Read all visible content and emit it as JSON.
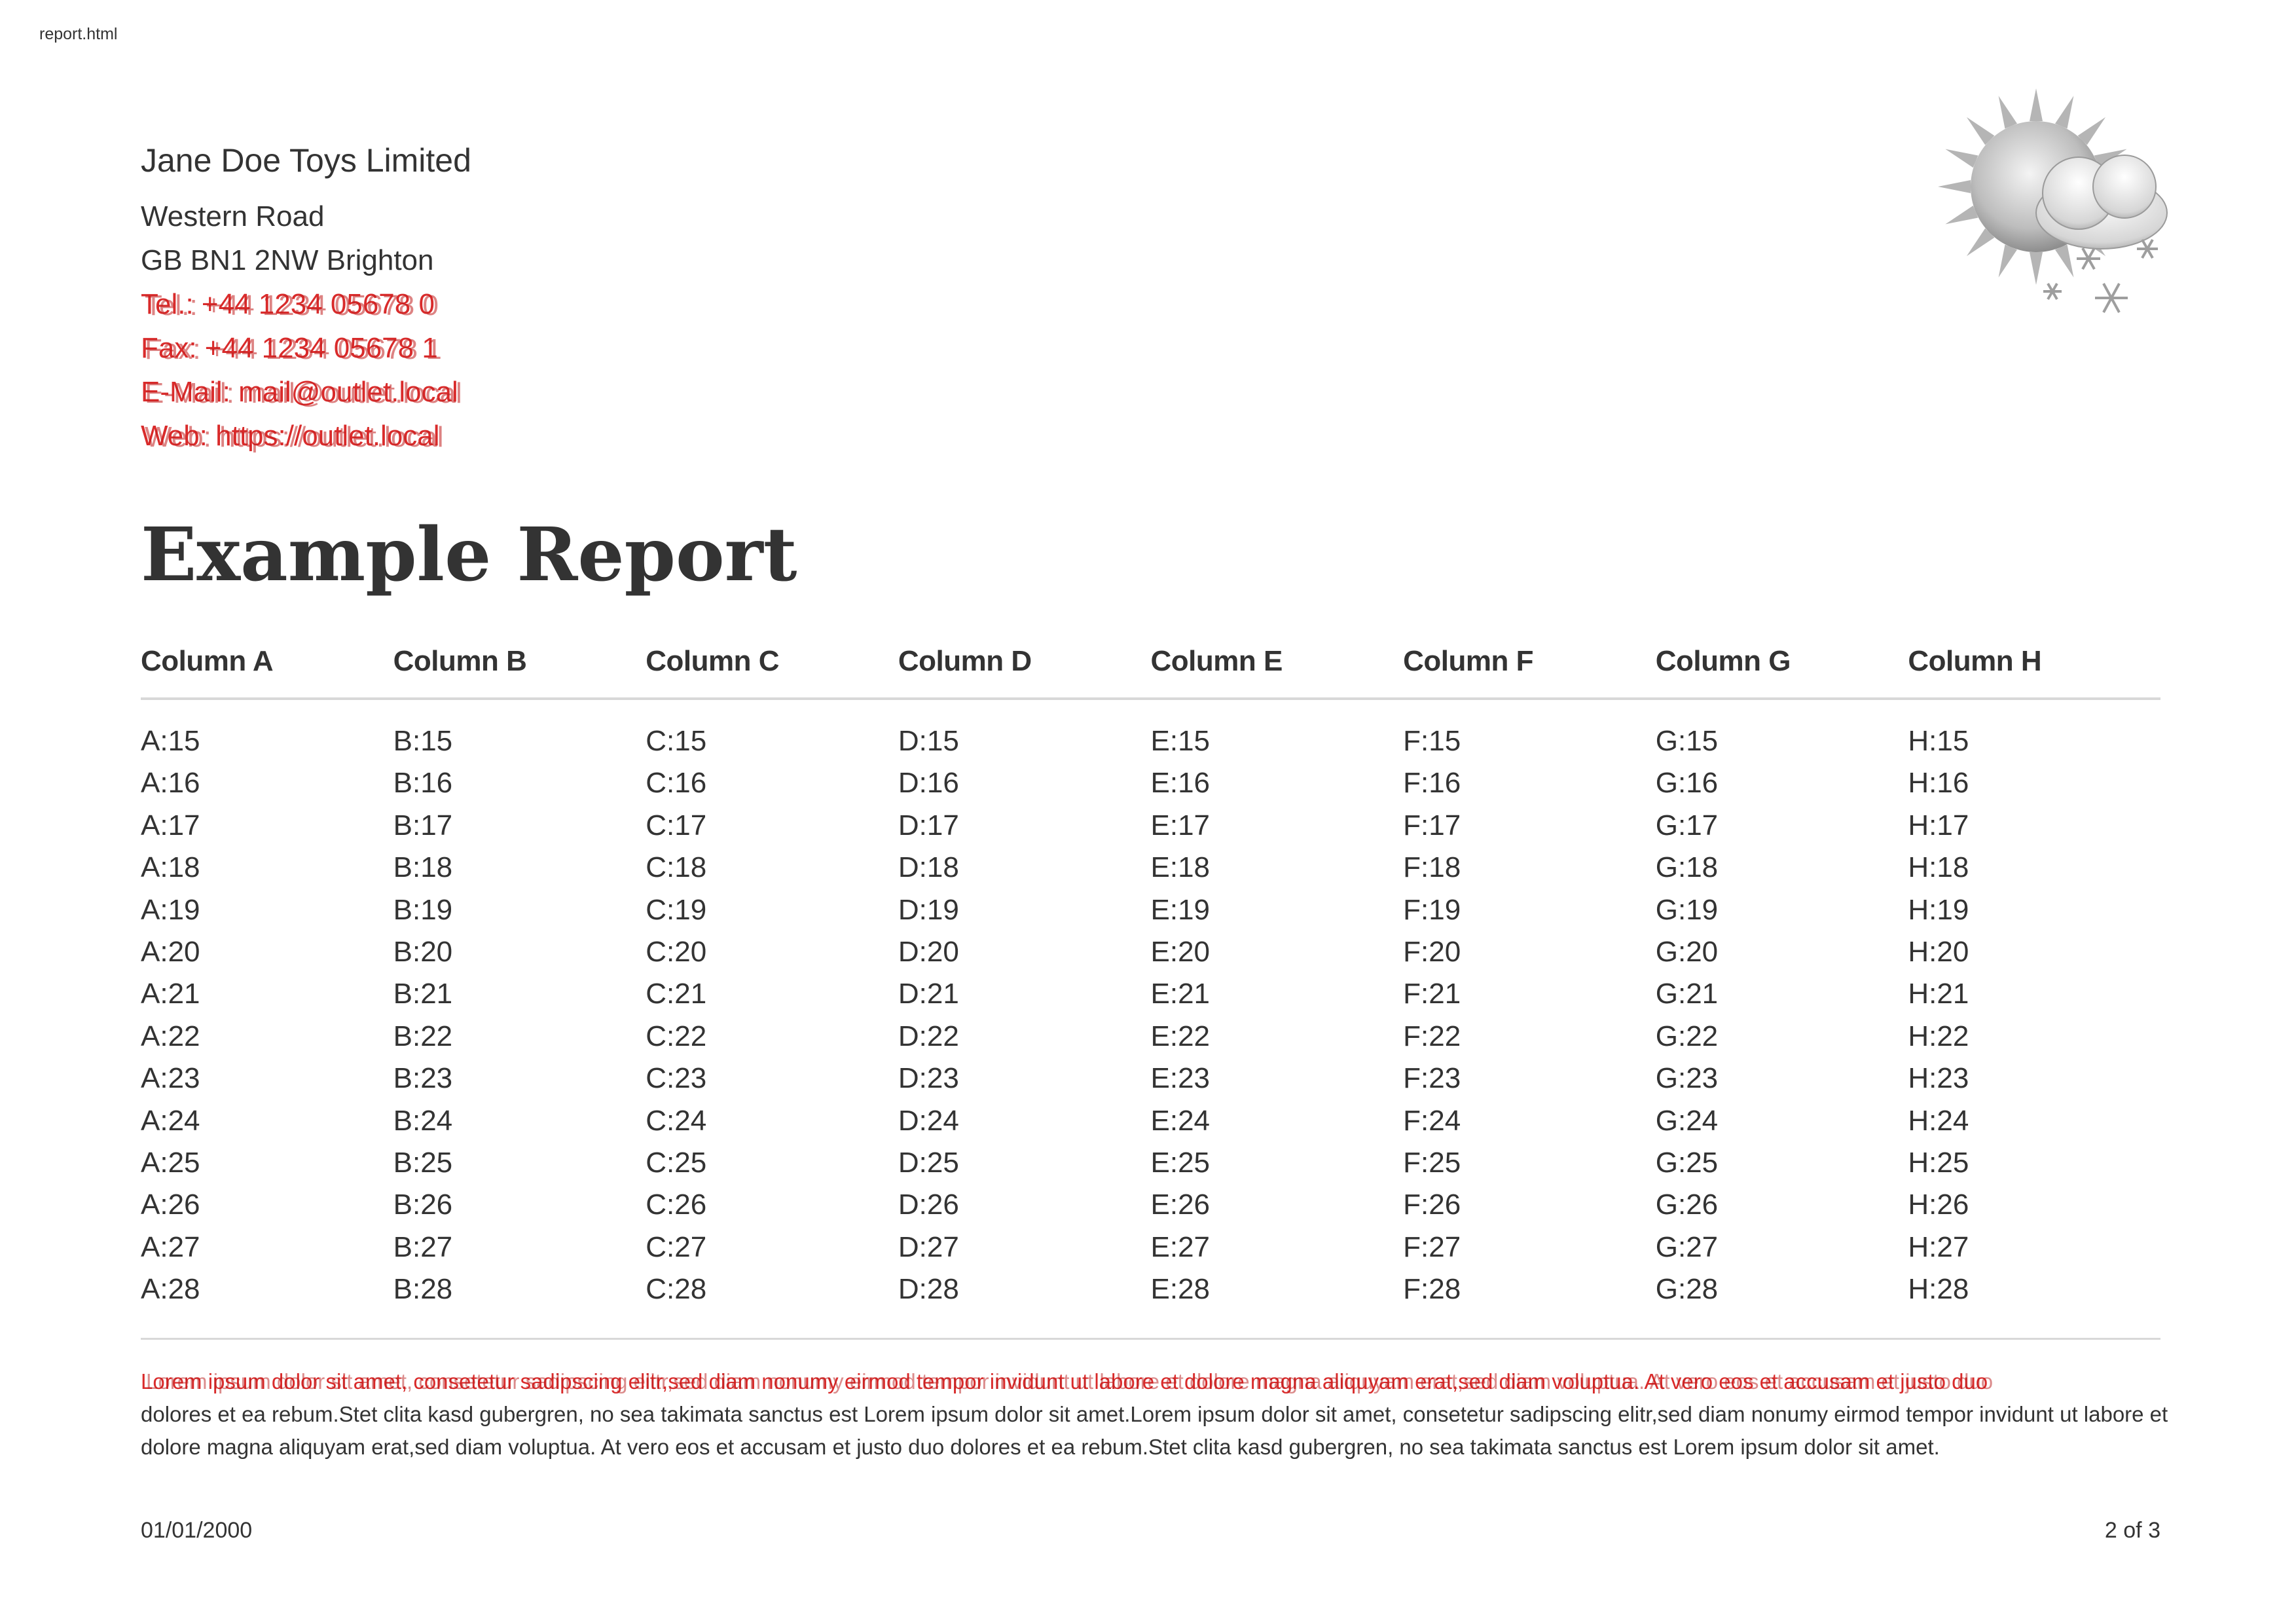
{
  "filename": "report.html",
  "company": {
    "name": "Jane Doe Toys Limited",
    "street": "Western Road",
    "city": "GB BN1 2NW Brighton",
    "tel": "Tel.: +44 1234 05678 0",
    "fax": "Fax: +44 1234 05678 1",
    "email": "E-Mail: mail@outlet.local",
    "web": "Web: https://outlet.local"
  },
  "logo_icon": "weather-sun-cloud-snow-icon",
  "title": "Example Report",
  "table": {
    "columns": [
      "Column A",
      "Column B",
      "Column C",
      "Column D",
      "Column E",
      "Column F",
      "Column G",
      "Column H"
    ],
    "rows": [
      [
        "A:15",
        "B:15",
        "C:15",
        "D:15",
        "E:15",
        "F:15",
        "G:15",
        "H:15"
      ],
      [
        "A:16",
        "B:16",
        "C:16",
        "D:16",
        "E:16",
        "F:16",
        "G:16",
        "H:16"
      ],
      [
        "A:17",
        "B:17",
        "C:17",
        "D:17",
        "E:17",
        "F:17",
        "G:17",
        "H:17"
      ],
      [
        "A:18",
        "B:18",
        "C:18",
        "D:18",
        "E:18",
        "F:18",
        "G:18",
        "H:18"
      ],
      [
        "A:19",
        "B:19",
        "C:19",
        "D:19",
        "E:19",
        "F:19",
        "G:19",
        "H:19"
      ],
      [
        "A:20",
        "B:20",
        "C:20",
        "D:20",
        "E:20",
        "F:20",
        "G:20",
        "H:20"
      ],
      [
        "A:21",
        "B:21",
        "C:21",
        "D:21",
        "E:21",
        "F:21",
        "G:21",
        "H:21"
      ],
      [
        "A:22",
        "B:22",
        "C:22",
        "D:22",
        "E:22",
        "F:22",
        "G:22",
        "H:22"
      ],
      [
        "A:23",
        "B:23",
        "C:23",
        "D:23",
        "E:23",
        "F:23",
        "G:23",
        "H:23"
      ],
      [
        "A:24",
        "B:24",
        "C:24",
        "D:24",
        "E:24",
        "F:24",
        "G:24",
        "H:24"
      ],
      [
        "A:25",
        "B:25",
        "C:25",
        "D:25",
        "E:25",
        "F:25",
        "G:25",
        "H:25"
      ],
      [
        "A:26",
        "B:26",
        "C:26",
        "D:26",
        "E:26",
        "F:26",
        "G:26",
        "H:26"
      ],
      [
        "A:27",
        "B:27",
        "C:27",
        "D:27",
        "E:27",
        "F:27",
        "G:27",
        "H:27"
      ],
      [
        "A:28",
        "B:28",
        "C:28",
        "D:28",
        "E:28",
        "F:28",
        "G:28",
        "H:28"
      ]
    ]
  },
  "footer": {
    "lorem_first_line": "Lorem ipsum dolor sit amet, consetetur sadipscing elitr,sed diam nonumy eirmod tempor invidunt ut labore et dolore magna aliquyam erat,sed diam voluptua. At vero eos et accusam et justo duo",
    "lorem_rest": "dolores et ea rebum.Stet clita kasd gubergren, no sea takimata sanctus est Lorem ipsum dolor sit amet.Lorem ipsum dolor sit amet, consetetur sadipscing elitr,sed diam nonumy eirmod tempor invidunt ut labore et dolore magna aliquyam erat,sed diam voluptua. At vero eos et accusam et justo duo dolores et ea rebum.Stet clita kasd gubergren, no sea takimata sanctus est Lorem ipsum dolor sit amet.",
    "date": "01/01/2000",
    "page": "2 of 3"
  },
  "colors": {
    "text": "#333333",
    "overlay_red": "#d92b2b",
    "rule": "#d8d8d8"
  }
}
